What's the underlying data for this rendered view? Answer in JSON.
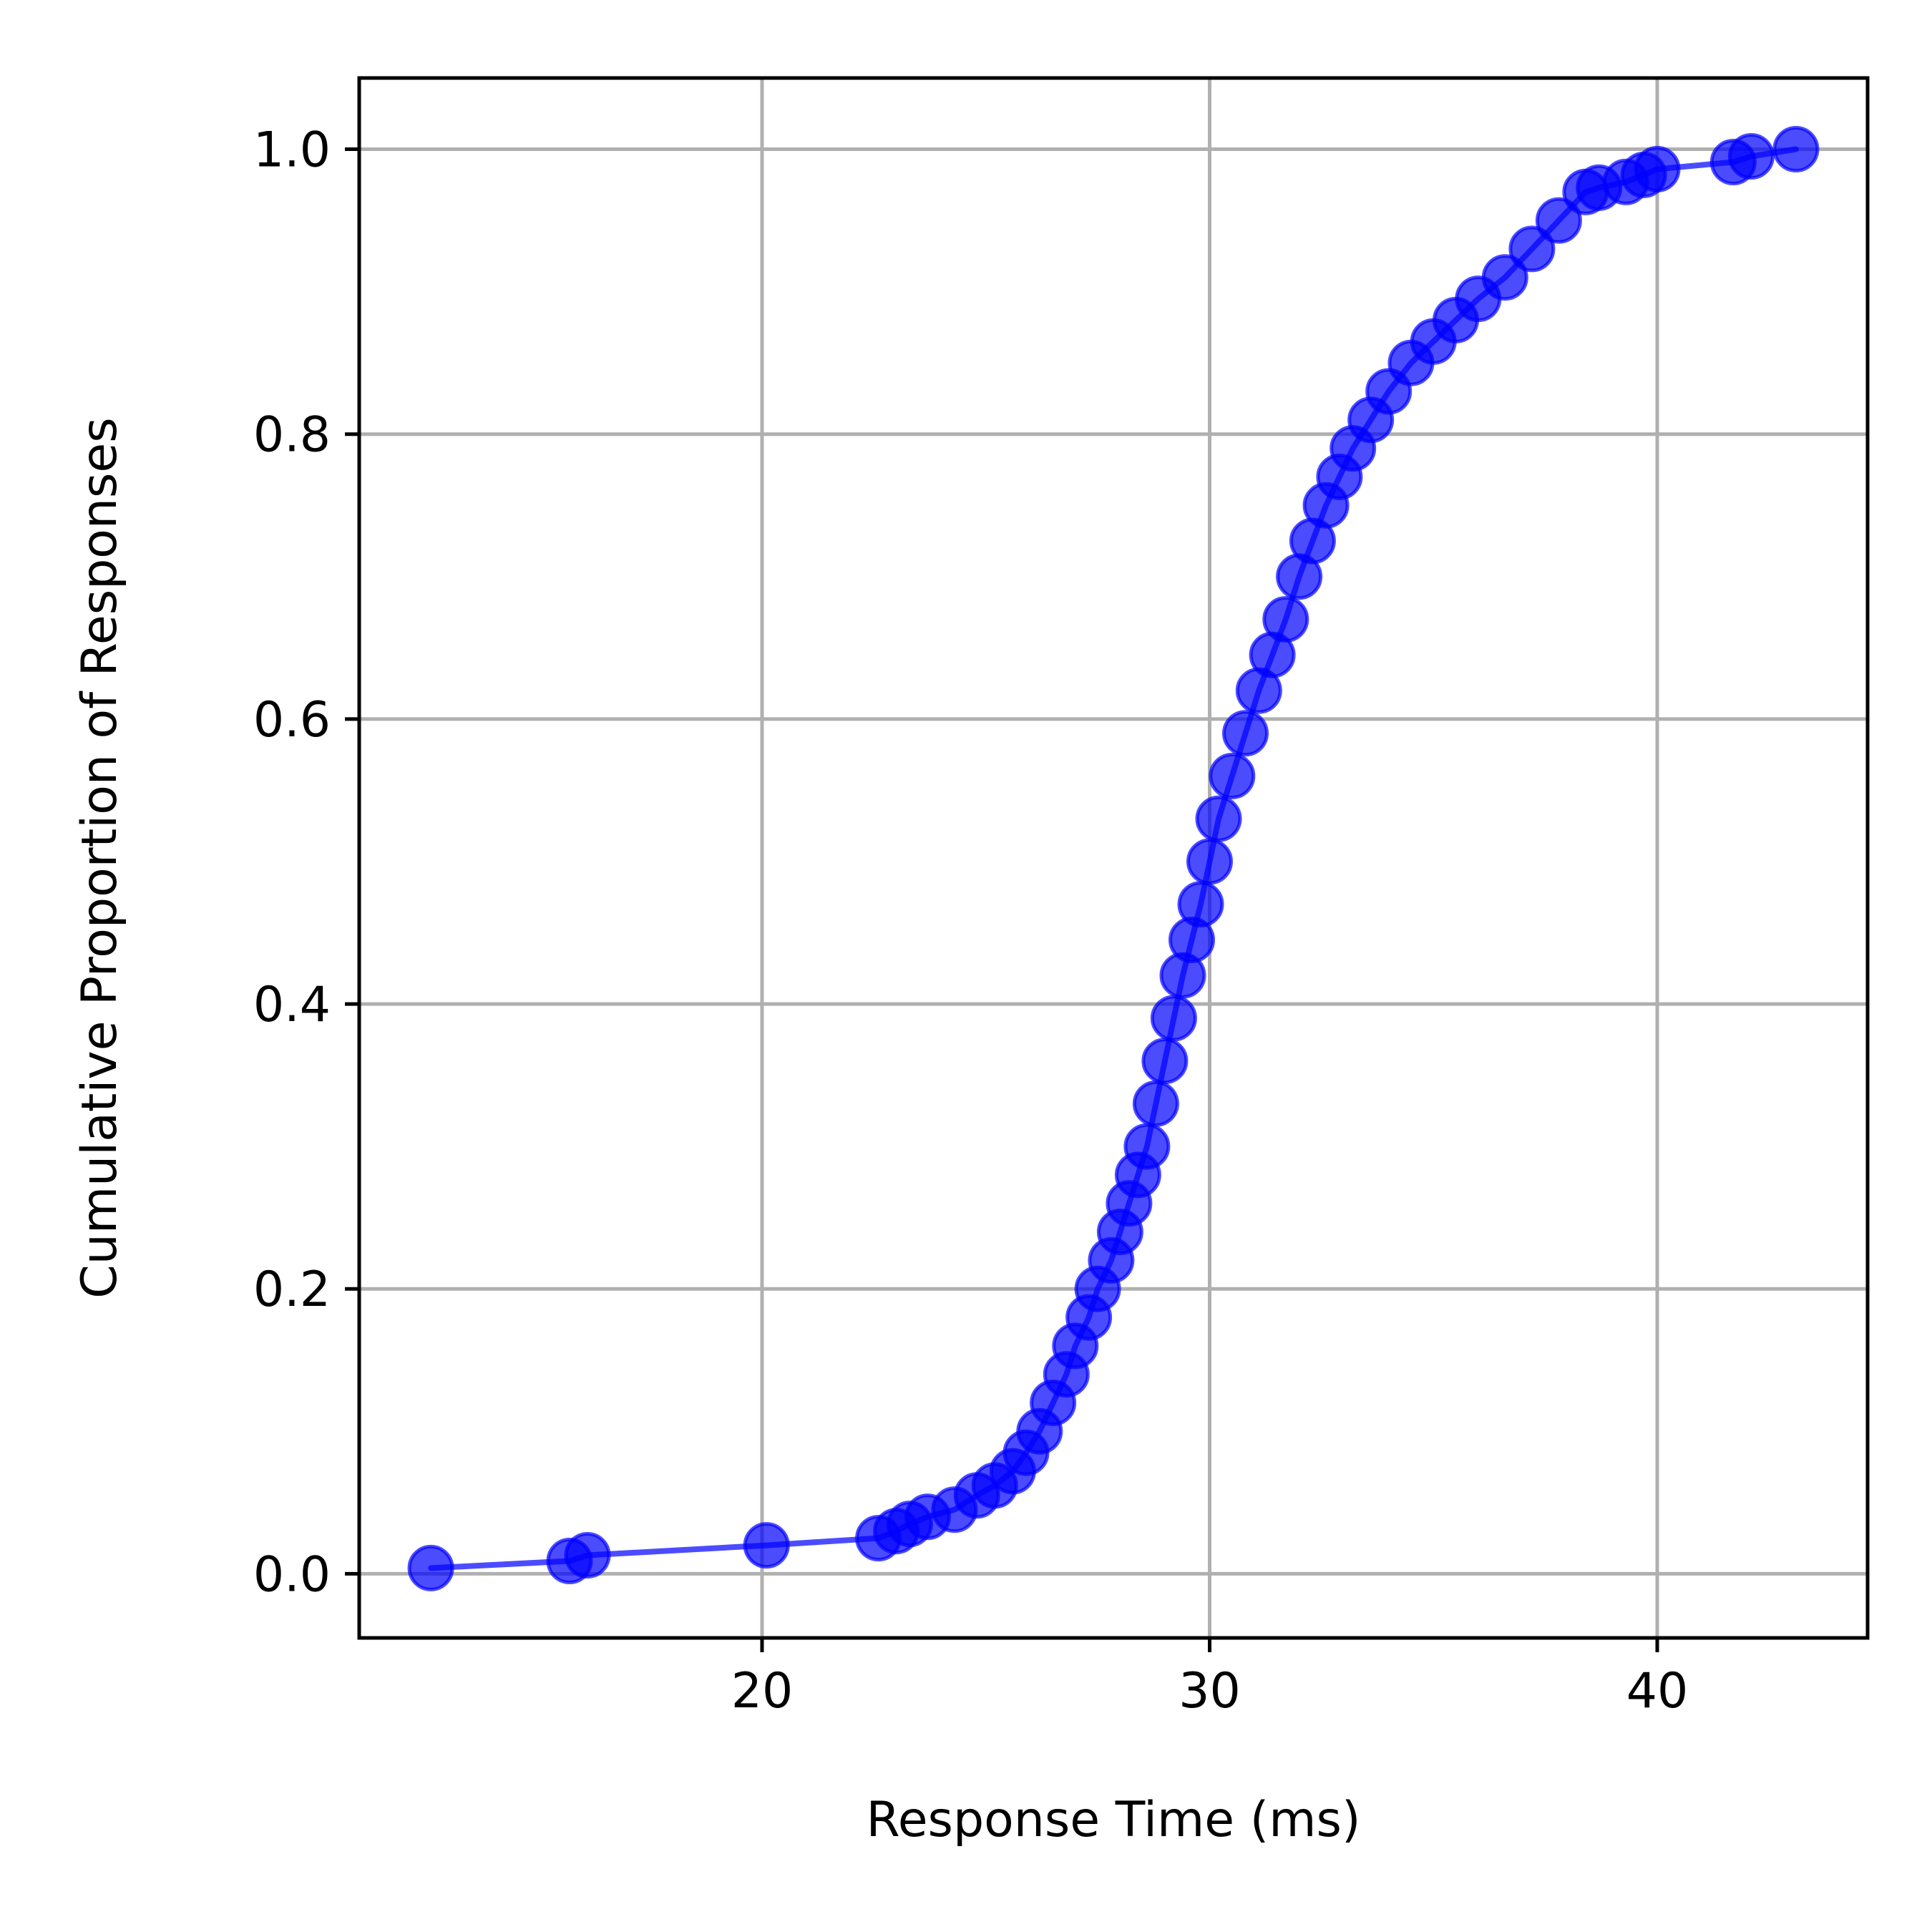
{
  "chart_data": {
    "type": "line",
    "title": "",
    "xlabel": "Response Time (ms)",
    "ylabel": "Cumulative Proportion of Responses",
    "xlim": [
      11,
      44.7
    ],
    "ylim": [
      -0.045,
      1.05
    ],
    "xticks": [
      20,
      30,
      40
    ],
    "yticks": [
      0.0,
      0.2,
      0.4,
      0.6,
      0.8,
      1.0
    ],
    "xtick_labels": [
      "20",
      "30",
      "40"
    ],
    "ytick_labels": [
      "0.0",
      "0.2",
      "0.4",
      "0.6",
      "0.8",
      "1.0"
    ],
    "grid": true,
    "legend": "none",
    "color": "#0000ff",
    "marker": "circle",
    "series": [
      {
        "x": [
          12.6,
          15.7,
          16.1,
          20.1,
          22.6,
          23.0,
          23.3,
          23.7,
          24.3,
          24.8,
          25.2,
          25.6,
          25.9,
          26.2,
          26.5,
          26.8,
          27.0,
          27.3,
          27.5,
          27.8,
          28.0,
          28.2,
          28.4,
          28.6,
          28.8,
          29.0,
          29.2,
          29.4,
          29.6,
          29.8,
          30.0,
          30.2,
          30.5,
          30.8,
          31.1,
          31.4,
          31.7,
          32.0,
          32.3,
          32.6,
          32.9,
          33.2,
          33.6,
          34.0,
          34.5,
          35.0,
          35.5,
          36.0,
          36.6,
          37.2,
          37.8,
          38.4,
          38.7,
          39.3,
          39.7,
          40.0,
          41.7,
          42.1,
          43.1
        ],
        "y": [
          0.004,
          0.009,
          0.013,
          0.02,
          0.025,
          0.03,
          0.035,
          0.04,
          0.045,
          0.055,
          0.062,
          0.072,
          0.085,
          0.1,
          0.12,
          0.14,
          0.16,
          0.18,
          0.2,
          0.22,
          0.24,
          0.26,
          0.28,
          0.3,
          0.33,
          0.36,
          0.39,
          0.42,
          0.445,
          0.47,
          0.5,
          0.53,
          0.56,
          0.59,
          0.62,
          0.645,
          0.67,
          0.7,
          0.725,
          0.75,
          0.77,
          0.79,
          0.81,
          0.83,
          0.85,
          0.865,
          0.88,
          0.895,
          0.91,
          0.93,
          0.95,
          0.97,
          0.973,
          0.977,
          0.982,
          0.986,
          0.991,
          0.995,
          1.0
        ]
      }
    ]
  }
}
